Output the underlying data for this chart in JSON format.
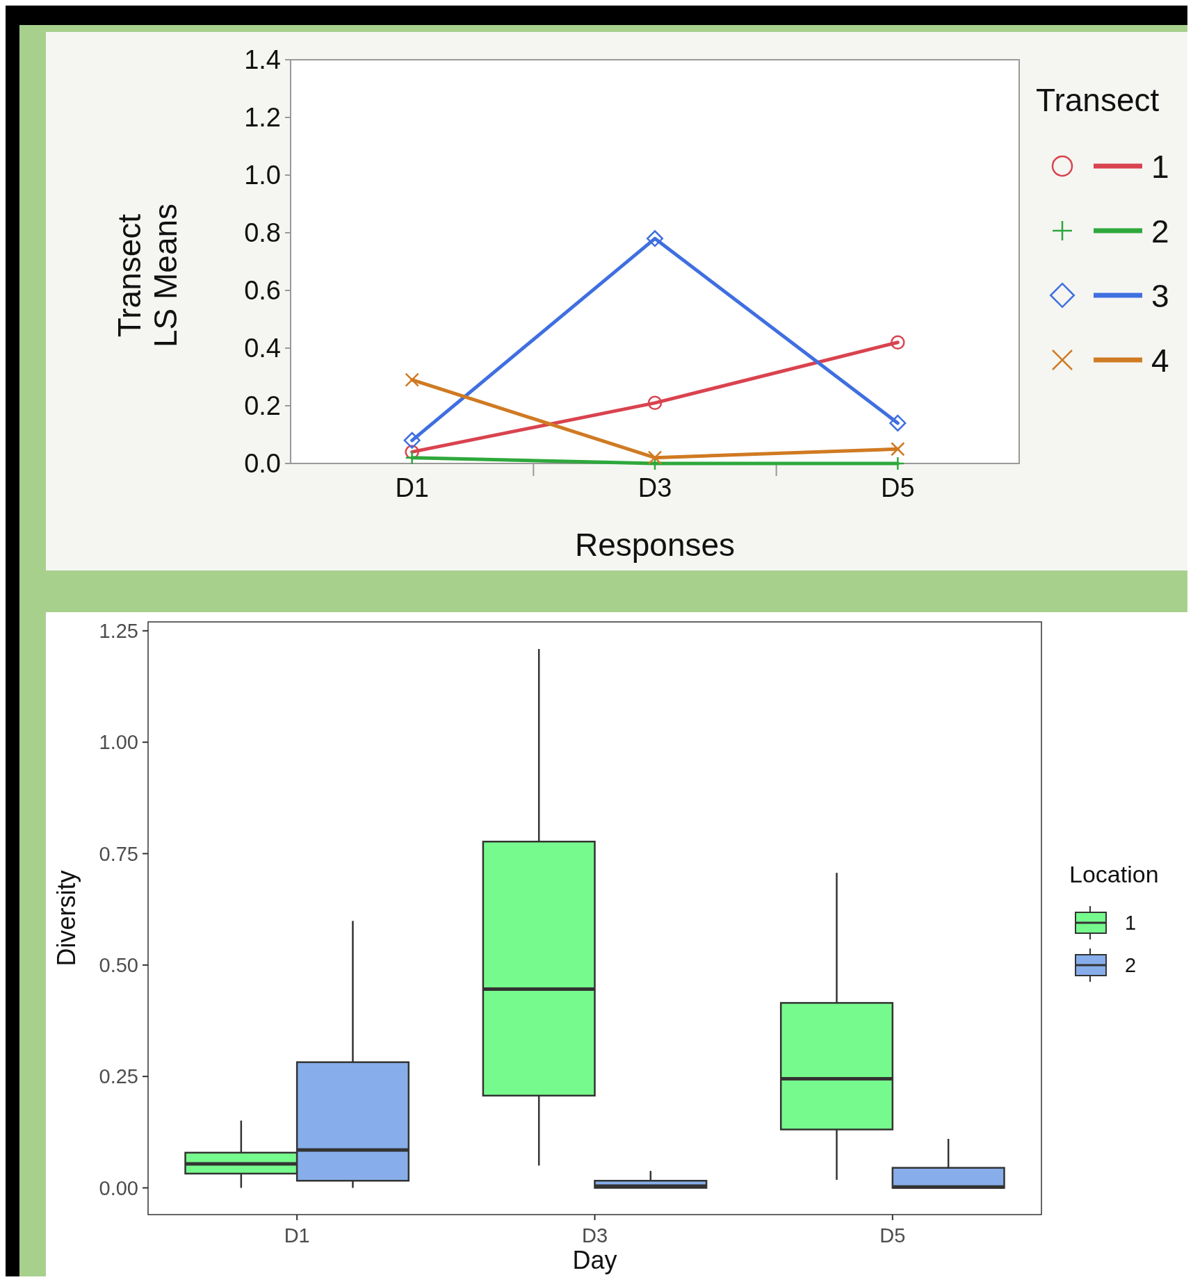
{
  "chart_data": [
    {
      "type": "line",
      "xlabel": "Responses",
      "ylabel": "Transect\nLS Means",
      "legend_title": "Transect",
      "legend": "right",
      "categories": [
        "D1",
        "D3",
        "D5"
      ],
      "ylim": [
        0,
        1.4
      ],
      "yticks": [
        {
          "value": 0,
          "label": "0.0"
        },
        {
          "value": 0.2,
          "label": "0.2"
        },
        {
          "value": 0.4,
          "label": "0.4"
        },
        {
          "value": 0.6,
          "label": "0.6"
        },
        {
          "value": 0.8,
          "label": "0.8"
        },
        {
          "value": 1,
          "label": "1.0"
        },
        {
          "value": 1.2,
          "label": "1.2"
        },
        {
          "value": 1.4,
          "label": "1.4"
        }
      ],
      "series": [
        {
          "name": "1",
          "color": "#d9434f",
          "marker": "circle",
          "values": [
            0.04,
            0.21,
            0.42
          ]
        },
        {
          "name": "2",
          "color": "#2ea83c",
          "marker": "cross",
          "values": [
            0.02,
            0.0,
            0.0
          ]
        },
        {
          "name": "3",
          "color": "#3f6fe0",
          "marker": "diamond",
          "values": [
            0.08,
            0.78,
            0.14
          ]
        },
        {
          "name": "4",
          "color": "#d07a22",
          "marker": "x",
          "values": [
            0.29,
            0.02,
            0.05
          ]
        }
      ]
    },
    {
      "type": "box",
      "xlabel": "Day",
      "ylabel": "Diversity",
      "legend_title": "Location",
      "legend": "right",
      "categories": [
        "D1",
        "D3",
        "D5"
      ],
      "ylim": [
        -0.06,
        1.27
      ],
      "yticks": [
        {
          "value": 0,
          "label": "0.00"
        },
        {
          "value": 0.25,
          "label": "0.25"
        },
        {
          "value": 0.5,
          "label": "0.50"
        },
        {
          "value": 0.75,
          "label": "0.75"
        },
        {
          "value": 1,
          "label": "1.00"
        },
        {
          "value": 1.25,
          "label": "1.25"
        }
      ],
      "series": [
        {
          "name": "1",
          "color": "#77fa8d",
          "boxes": [
            {
              "low": 0.0,
              "q1": 0.032,
              "median": 0.054,
              "q3": 0.079,
              "high": 0.151
            },
            {
              "low": 0.05,
              "q1": 0.207,
              "median": 0.446,
              "q3": 0.777,
              "high": 1.209
            },
            {
              "low": 0.018,
              "q1": 0.131,
              "median": 0.245,
              "q3": 0.415,
              "high": 0.707
            }
          ]
        },
        {
          "name": "2",
          "color": "#87aeea",
          "boxes": [
            {
              "low": 0.0,
              "q1": 0.016,
              "median": 0.085,
              "q3": 0.282,
              "high": 0.599
            },
            {
              "low": 0.0,
              "q1": 0.0,
              "median": 0.004,
              "q3": 0.016,
              "high": 0.038
            },
            {
              "low": 0.0,
              "q1": 0.0,
              "median": 0.002,
              "q3": 0.045,
              "high": 0.11
            }
          ]
        }
      ]
    }
  ]
}
